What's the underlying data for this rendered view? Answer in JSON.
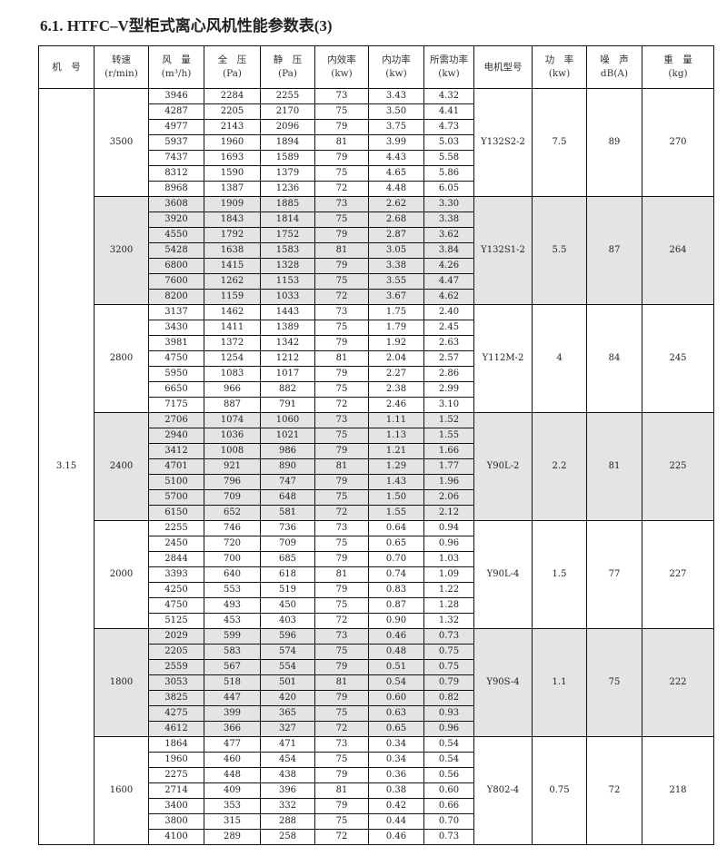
{
  "title": "6.1. HTFC–V型柜式离心风机性能参数表(3)",
  "headers": [
    {
      "l1": "机　号",
      "l2": ""
    },
    {
      "l1": "转速",
      "l2": "(r/min)"
    },
    {
      "l1": "风　量",
      "l2": "(m³/h)"
    },
    {
      "l1": "全　压",
      "l2": "(Pa)"
    },
    {
      "l1": "静　压",
      "l2": "(Pa)"
    },
    {
      "l1": "内效率",
      "l2": "(kw)"
    },
    {
      "l1": "内功率",
      "l2": "(kw)"
    },
    {
      "l1": "所需功率",
      "l2": "(kw)"
    },
    {
      "l1": "电机型号",
      "l2": ""
    },
    {
      "l1": "功　率",
      "l2": "(kw)"
    },
    {
      "l1": "噪　声",
      "l2": "dB(A)"
    },
    {
      "l1": "重　量",
      "l2": "(kg)"
    }
  ],
  "machine_no": "3.15",
  "shade_color": "#e4e4e4",
  "groups": [
    {
      "speed": "3500",
      "motor": "Y132S2-2",
      "power": "7.5",
      "noise": "89",
      "weight": "270",
      "shaded": false,
      "rows": [
        [
          "3946",
          "2284",
          "2255",
          "73",
          "3.43",
          "4.32"
        ],
        [
          "4287",
          "2205",
          "2170",
          "75",
          "3.50",
          "4.41"
        ],
        [
          "4977",
          "2143",
          "2096",
          "79",
          "3.75",
          "4.73"
        ],
        [
          "5937",
          "1960",
          "1894",
          "81",
          "3.99",
          "5.03"
        ],
        [
          "7437",
          "1693",
          "1589",
          "79",
          "4.43",
          "5.58"
        ],
        [
          "8312",
          "1590",
          "1379",
          "75",
          "4.65",
          "5.86"
        ],
        [
          "8968",
          "1387",
          "1236",
          "72",
          "4.48",
          "6.05"
        ]
      ]
    },
    {
      "speed": "3200",
      "motor": "Y132S1-2",
      "power": "5.5",
      "noise": "87",
      "weight": "264",
      "shaded": true,
      "rows": [
        [
          "3608",
          "1909",
          "1885",
          "73",
          "2.62",
          "3.30"
        ],
        [
          "3920",
          "1843",
          "1814",
          "75",
          "2.68",
          "3.38"
        ],
        [
          "4550",
          "1792",
          "1752",
          "79",
          "2.87",
          "3.62"
        ],
        [
          "5428",
          "1638",
          "1583",
          "81",
          "3.05",
          "3.84"
        ],
        [
          "6800",
          "1415",
          "1328",
          "79",
          "3.38",
          "4.26"
        ],
        [
          "7600",
          "1262",
          "1153",
          "75",
          "3.55",
          "4.47"
        ],
        [
          "8200",
          "1159",
          "1033",
          "72",
          "3.67",
          "4.62"
        ]
      ]
    },
    {
      "speed": "2800",
      "motor": "Y112M-2",
      "power": "4",
      "noise": "84",
      "weight": "245",
      "shaded": false,
      "rows": [
        [
          "3137",
          "1462",
          "1443",
          "73",
          "1.75",
          "2.40"
        ],
        [
          "3430",
          "1411",
          "1389",
          "75",
          "1.79",
          "2.45"
        ],
        [
          "3981",
          "1372",
          "1342",
          "79",
          "1.92",
          "2.63"
        ],
        [
          "4750",
          "1254",
          "1212",
          "81",
          "2.04",
          "2.57"
        ],
        [
          "5950",
          "1083",
          "1017",
          "79",
          "2.27",
          "2.86"
        ],
        [
          "6650",
          "966",
          "882",
          "75",
          "2.38",
          "2.99"
        ],
        [
          "7175",
          "887",
          "791",
          "72",
          "2.46",
          "3.10"
        ]
      ]
    },
    {
      "speed": "2400",
      "motor": "Y90L-2",
      "power": "2.2",
      "noise": "81",
      "weight": "225",
      "shaded": true,
      "rows": [
        [
          "2706",
          "1074",
          "1060",
          "73",
          "1.11",
          "1.52"
        ],
        [
          "2940",
          "1036",
          "1021",
          "75",
          "1.13",
          "1.55"
        ],
        [
          "3412",
          "1008",
          "986",
          "79",
          "1.21",
          "1.66"
        ],
        [
          "4701",
          "921",
          "890",
          "81",
          "1.29",
          "1.77"
        ],
        [
          "5100",
          "796",
          "747",
          "79",
          "1.43",
          "1.96"
        ],
        [
          "5700",
          "709",
          "648",
          "75",
          "1.50",
          "2.06"
        ],
        [
          "6150",
          "652",
          "581",
          "72",
          "1.55",
          "2.12"
        ]
      ]
    },
    {
      "speed": "2000",
      "motor": "Y90L-4",
      "power": "1.5",
      "noise": "77",
      "weight": "227",
      "shaded": false,
      "rows": [
        [
          "2255",
          "746",
          "736",
          "73",
          "0.64",
          "0.94"
        ],
        [
          "2450",
          "720",
          "709",
          "75",
          "0.65",
          "0.96"
        ],
        [
          "2844",
          "700",
          "685",
          "79",
          "0.70",
          "1.03"
        ],
        [
          "3393",
          "640",
          "618",
          "81",
          "0.74",
          "1.09"
        ],
        [
          "4250",
          "553",
          "519",
          "79",
          "0.83",
          "1.22"
        ],
        [
          "4750",
          "493",
          "450",
          "75",
          "0.87",
          "1.28"
        ],
        [
          "5125",
          "453",
          "403",
          "72",
          "0.90",
          "1.32"
        ]
      ]
    },
    {
      "speed": "1800",
      "motor": "Y90S-4",
      "power": "1.1",
      "noise": "75",
      "weight": "222",
      "shaded": true,
      "rows": [
        [
          "2029",
          "599",
          "596",
          "73",
          "0.46",
          "0.73"
        ],
        [
          "2205",
          "583",
          "574",
          "75",
          "0.48",
          "0.75"
        ],
        [
          "2559",
          "567",
          "554",
          "79",
          "0.51",
          "0.75"
        ],
        [
          "3053",
          "518",
          "501",
          "81",
          "0.54",
          "0.79"
        ],
        [
          "3825",
          "447",
          "420",
          "79",
          "0.60",
          "0.82"
        ],
        [
          "4275",
          "399",
          "365",
          "75",
          "0.63",
          "0.93"
        ],
        [
          "4612",
          "366",
          "327",
          "72",
          "0.65",
          "0.96"
        ]
      ]
    },
    {
      "speed": "1600",
      "motor": "Y802-4",
      "power": "0.75",
      "noise": "72",
      "weight": "218",
      "shaded": false,
      "rows": [
        [
          "1864",
          "477",
          "471",
          "73",
          "0.34",
          "0.54"
        ],
        [
          "1960",
          "460",
          "454",
          "75",
          "0.34",
          "0.54"
        ],
        [
          "2275",
          "448",
          "438",
          "79",
          "0.36",
          "0.56"
        ],
        [
          "2714",
          "409",
          "396",
          "81",
          "0.38",
          "0.60"
        ],
        [
          "3400",
          "353",
          "332",
          "79",
          "0.42",
          "0.66"
        ],
        [
          "3800",
          "315",
          "288",
          "75",
          "0.44",
          "0.70"
        ],
        [
          "4100",
          "289",
          "258",
          "72",
          "0.46",
          "0.73"
        ]
      ]
    }
  ]
}
